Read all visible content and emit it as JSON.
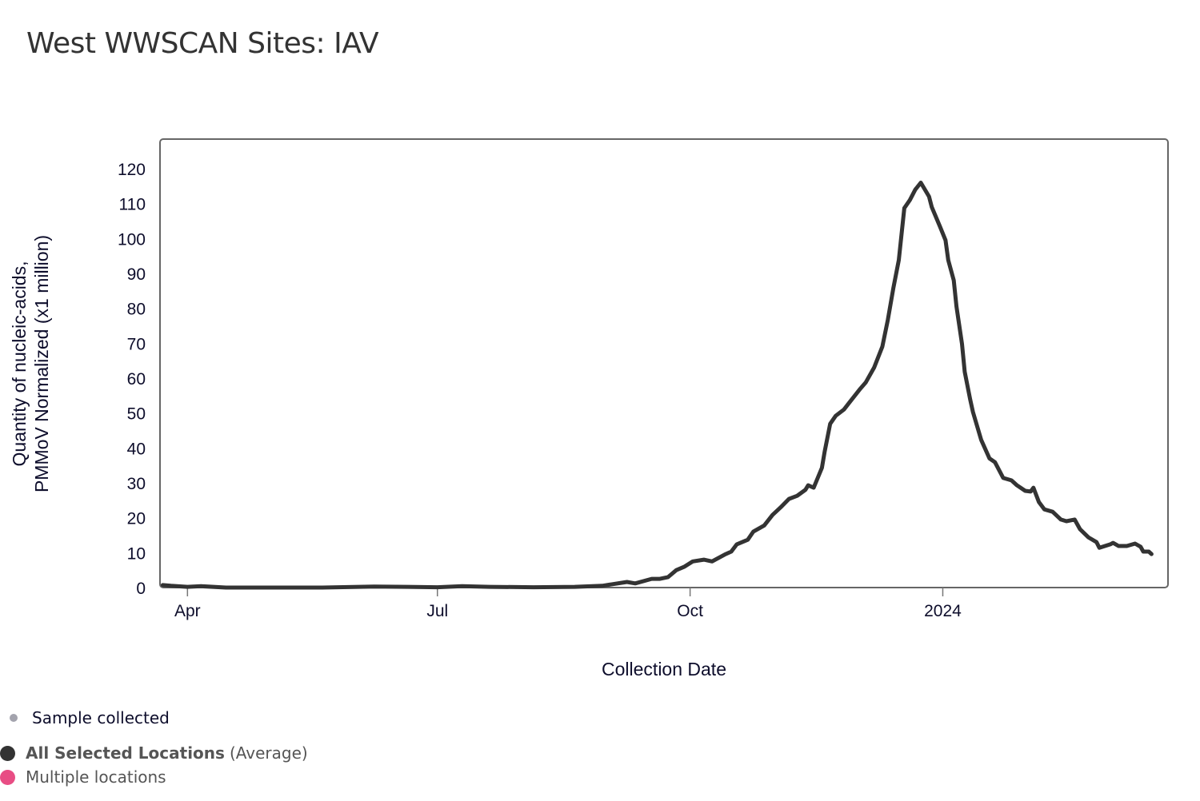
{
  "title": "West WWSCAN Sites: IAV",
  "chart_data": {
    "type": "line",
    "title": "West WWSCAN Sites: IAV",
    "xlabel": "Collection Date",
    "ylabel_lines": [
      "Quantity of nucleic-acids,",
      "PMMoV Normalized (x1 million)"
    ],
    "ylabel": "Quantity of nucleic-acids, PMMoV Normalized (x1 million)",
    "ylim": [
      0,
      128
    ],
    "xlim": [
      "2023-03-22",
      "2024-03-23"
    ],
    "yticks": [
      0,
      10,
      20,
      30,
      40,
      50,
      60,
      70,
      80,
      90,
      100,
      110,
      120
    ],
    "xticks": [
      {
        "date": "2023-04-01",
        "label": "Apr"
      },
      {
        "date": "2023-07-01",
        "label": "Jul"
      },
      {
        "date": "2023-10-01",
        "label": "Oct"
      },
      {
        "date": "2024-01-01",
        "label": "2024"
      }
    ],
    "grid": false,
    "legend_position": "bottom-left",
    "series": [
      {
        "name": "All Selected Locations (Average)",
        "color": "#333333",
        "points": [
          [
            "2023-03-23",
            0.7
          ],
          [
            "2023-03-26",
            0.5
          ],
          [
            "2023-04-01",
            0.2
          ],
          [
            "2023-04-06",
            0.4
          ],
          [
            "2023-04-15",
            0.0
          ],
          [
            "2023-05-01",
            0.0
          ],
          [
            "2023-05-20",
            0.0
          ],
          [
            "2023-06-08",
            0.3
          ],
          [
            "2023-06-20",
            0.2
          ],
          [
            "2023-07-01",
            0.1
          ],
          [
            "2023-07-10",
            0.4
          ],
          [
            "2023-07-20",
            0.2
          ],
          [
            "2023-08-05",
            0.1
          ],
          [
            "2023-08-20",
            0.2
          ],
          [
            "2023-08-30",
            0.5
          ],
          [
            "2023-09-08",
            1.6
          ],
          [
            "2023-09-11",
            1.2
          ],
          [
            "2023-09-17",
            2.5
          ],
          [
            "2023-09-20",
            2.5
          ],
          [
            "2023-09-23",
            3.0
          ],
          [
            "2023-09-26",
            5.0
          ],
          [
            "2023-09-29",
            6.0
          ],
          [
            "2023-10-02",
            7.5
          ],
          [
            "2023-10-06",
            8.0
          ],
          [
            "2023-10-09",
            7.5
          ],
          [
            "2023-10-14",
            9.6
          ],
          [
            "2023-10-16",
            10.3
          ],
          [
            "2023-10-18",
            12.4
          ],
          [
            "2023-10-22",
            13.7
          ],
          [
            "2023-10-24",
            16.0
          ],
          [
            "2023-10-28",
            17.8
          ],
          [
            "2023-10-31",
            20.8
          ],
          [
            "2023-11-03",
            23.0
          ],
          [
            "2023-11-06",
            25.4
          ],
          [
            "2023-11-09",
            26.3
          ],
          [
            "2023-11-12",
            28.0
          ],
          [
            "2023-11-13",
            29.3
          ],
          [
            "2023-11-15",
            28.6
          ],
          [
            "2023-11-18",
            34.3
          ],
          [
            "2023-11-19",
            38.9
          ],
          [
            "2023-11-21",
            46.9
          ],
          [
            "2023-11-23",
            49.2
          ],
          [
            "2023-11-26",
            51.0
          ],
          [
            "2023-11-28",
            53.0
          ],
          [
            "2023-12-02",
            57.0
          ],
          [
            "2023-12-04",
            58.8
          ],
          [
            "2023-12-07",
            63.0
          ],
          [
            "2023-12-10",
            69.0
          ],
          [
            "2023-12-12",
            76.7
          ],
          [
            "2023-12-14",
            85.8
          ],
          [
            "2023-12-16",
            93.8
          ],
          [
            "2023-12-18",
            108.7
          ],
          [
            "2023-12-20",
            111.0
          ],
          [
            "2023-12-22",
            114.0
          ],
          [
            "2023-12-24",
            116.0
          ],
          [
            "2023-12-27",
            112.0
          ],
          [
            "2023-12-28",
            109.0
          ],
          [
            "2023-12-31",
            103.4
          ],
          [
            "2024-01-02",
            99.5
          ],
          [
            "2024-01-03",
            93.8
          ],
          [
            "2024-01-05",
            88.0
          ],
          [
            "2024-01-06",
            80.5
          ],
          [
            "2024-01-08",
            69.8
          ],
          [
            "2024-01-09",
            61.8
          ],
          [
            "2024-01-11",
            53.8
          ],
          [
            "2024-01-12",
            50.3
          ],
          [
            "2024-01-15",
            42.3
          ],
          [
            "2024-01-18",
            37.0
          ],
          [
            "2024-01-20",
            35.9
          ],
          [
            "2024-01-23",
            31.4
          ],
          [
            "2024-01-26",
            30.7
          ],
          [
            "2024-01-28",
            29.3
          ],
          [
            "2024-01-31",
            27.7
          ],
          [
            "2024-02-02",
            27.5
          ],
          [
            "2024-02-03",
            28.6
          ],
          [
            "2024-02-05",
            24.5
          ],
          [
            "2024-02-07",
            22.4
          ],
          [
            "2024-02-10",
            21.7
          ],
          [
            "2024-02-13",
            19.5
          ],
          [
            "2024-02-15",
            19.0
          ],
          [
            "2024-02-18",
            19.5
          ],
          [
            "2024-02-20",
            16.7
          ],
          [
            "2024-02-23",
            14.4
          ],
          [
            "2024-02-26",
            13.0
          ],
          [
            "2024-02-27",
            11.4
          ],
          [
            "2024-03-02",
            12.4
          ],
          [
            "2024-03-03",
            12.8
          ],
          [
            "2024-03-05",
            11.9
          ],
          [
            "2024-03-08",
            11.9
          ],
          [
            "2024-03-11",
            12.6
          ],
          [
            "2024-03-13",
            11.7
          ],
          [
            "2024-03-14",
            10.3
          ],
          [
            "2024-03-16",
            10.3
          ],
          [
            "2024-03-17",
            9.6
          ]
        ]
      }
    ]
  },
  "legend": {
    "sample": {
      "label": "Sample collected",
      "color": "#a3a3ad"
    },
    "all": {
      "label_bold": "All Selected Locations",
      "label_normal": "(Average)",
      "color": "#333333"
    },
    "multiple": {
      "label": "Multiple locations",
      "color": "#e84d84"
    }
  }
}
